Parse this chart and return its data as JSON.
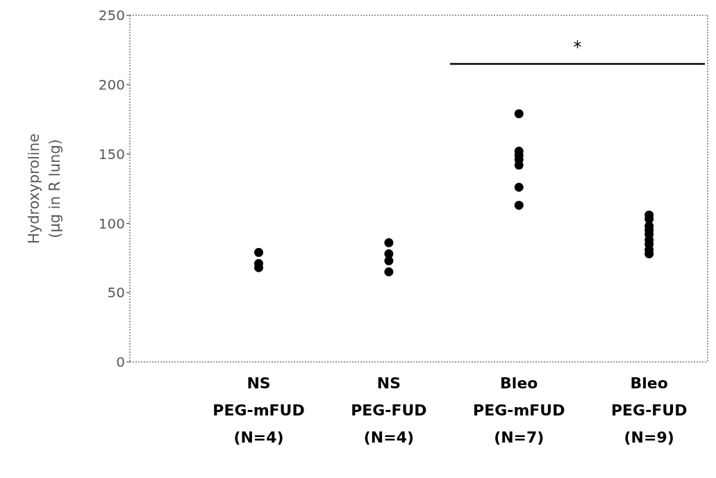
{
  "chart_data": {
    "type": "scatter",
    "ylabel": "Hydroxyproline\n(µg in R lung)",
    "categories": [
      "NS\nPEG-mFUD\n(N=4)",
      "NS\nPEG-FUD\n(N=4)",
      "Bleo\nPEG-mFUD\n(N=7)",
      "Bleo\nPEG-FUD\n(N=9)"
    ],
    "series": [
      {
        "color": "#000000",
        "x": [
          "NS\nPEG-mFUD\n(N=4)",
          "NS\nPEG-mFUD\n(N=4)",
          "NS\nPEG-mFUD\n(N=4)",
          "NS\nPEG-mFUD\n(N=4)",
          "NS\nPEG-FUD\n(N=4)",
          "NS\nPEG-FUD\n(N=4)",
          "NS\nPEG-FUD\n(N=4)",
          "NS\nPEG-FUD\n(N=4)",
          "Bleo\nPEG-mFUD\n(N=7)",
          "Bleo\nPEG-mFUD\n(N=7)",
          "Bleo\nPEG-mFUD\n(N=7)",
          "Bleo\nPEG-mFUD\n(N=7)",
          "Bleo\nPEG-mFUD\n(N=7)",
          "Bleo\nPEG-mFUD\n(N=7)",
          "Bleo\nPEG-mFUD\n(N=7)",
          "Bleo\nPEG-FUD\n(N=9)",
          "Bleo\nPEG-FUD\n(N=9)",
          "Bleo\nPEG-FUD\n(N=9)",
          "Bleo\nPEG-FUD\n(N=9)",
          "Bleo\nPEG-FUD\n(N=9)",
          "Bleo\nPEG-FUD\n(N=9)",
          "Bleo\nPEG-FUD\n(N=9)",
          "Bleo\nPEG-FUD\n(N=9)",
          "Bleo\nPEG-FUD\n(N=9)"
        ],
        "values": [
          79,
          71,
          68,
          null,
          86,
          78,
          73,
          65,
          179,
          152,
          149,
          146,
          142,
          126,
          113,
          106,
          103,
          98,
          95,
          92,
          88,
          85,
          81,
          78
        ]
      }
    ],
    "ylim": [
      0,
      250
    ],
    "yticks": [
      0,
      50,
      100,
      150,
      200,
      250
    ],
    "marker": "circle",
    "annotations": [
      "*"
    ]
  }
}
